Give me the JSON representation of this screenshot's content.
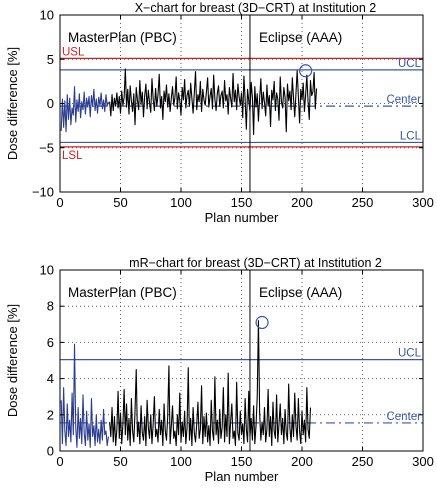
{
  "colors": {
    "pbc_series": "#2b3d8f",
    "aaa_series": "#000000",
    "limit_blue": "#3b55a8",
    "spec_red": "#d42020",
    "axis": "#000000"
  },
  "chart_data": [
    {
      "type": "line",
      "title": "X−chart for breast (3D−CRT) at Institution 2",
      "xlabel": "Plan number",
      "ylabel": "Dose difference [%]",
      "xlim": [
        0,
        300
      ],
      "ylim": [
        -10,
        10
      ],
      "grid": true,
      "x_ticks": [
        0,
        50,
        100,
        150,
        200,
        250,
        300
      ],
      "y_ticks": [
        -10,
        -5,
        0,
        5,
        10
      ],
      "x_tick_labels": [
        "0",
        "50",
        "100",
        "150",
        "200",
        "250",
        "300"
      ],
      "y_tick_labels": [
        "−10",
        "−5",
        "0",
        "5",
        "10"
      ],
      "regions": [
        {
          "label": "MasterPlan (PBC)",
          "x_start": 0,
          "x_end": 157
        },
        {
          "label": "Eclipse (AAA)",
          "x_start": 157,
          "x_end": 300
        }
      ],
      "divider_x": 157,
      "reference_lines": [
        {
          "label": "USL",
          "value": 5.1,
          "style": "solid",
          "color": "#d42020",
          "side": "left"
        },
        {
          "label": "UCL",
          "value": 3.8,
          "style": "solid",
          "color": "#3b55a8",
          "side": "right"
        },
        {
          "label": "Center",
          "value": -0.3,
          "style": "dashdot",
          "color": "#3b55a8",
          "side": "right"
        },
        {
          "label": "LCL",
          "value": -4.4,
          "style": "solid",
          "color": "#3b55a8",
          "side": "right"
        },
        {
          "label": "LSL",
          "value": -4.9,
          "style": "solid",
          "color": "#d42020",
          "side": "left"
        }
      ],
      "outliers": [
        {
          "x": 203,
          "y": 3.7
        }
      ],
      "series": [
        {
          "method": "PBC",
          "x_start": 1,
          "values": [
            -3.1,
            0.5,
            -2.7,
            0.3,
            -3.2,
            1.0,
            -1.8,
            0.6,
            -2.4,
            -0.5,
            -1.3,
            1.9,
            -2.1,
            0.4,
            -0.9,
            1.1,
            -1.6,
            0.2,
            -0.7,
            1.3,
            -1.2,
            0.6,
            -0.4,
            0.8,
            -1.5,
            0.9,
            -0.3,
            1.6,
            -0.8,
            0.5,
            -1.1,
            0.7,
            -0.2,
            1.2,
            -0.6,
            0.4,
            -0.9,
            1.0,
            -0.3,
            0.2
          ]
        },
        {
          "method": "AAA",
          "x_start": 41,
          "values": [
            0.2,
            -1.4,
            1.0,
            -0.8,
            0.6,
            -0.3,
            1.2,
            -0.5,
            0.8,
            -1.1,
            1.4,
            -0.2,
            0.7,
            3.9,
            -0.4,
            1.6,
            -1.2,
            2.0,
            0.3,
            -0.9,
            1.1,
            -2.4,
            1.8,
            0.4,
            -0.7,
            2.6,
            -0.1,
            1.3,
            -1.5,
            0.9,
            2.2,
            -0.6,
            1.5,
            0.1,
            -1.0,
            2.8,
            0.5,
            -0.8,
            1.7,
            -0.3,
            1.0,
            3.3,
            -0.5,
            0.8,
            -1.8,
            1.4,
            0.2,
            2.1,
            -0.4,
            1.1,
            -0.9,
            0.6,
            1.9,
            -0.2,
            0.7,
            3.0,
            -0.6,
            1.2,
            0.3,
            -1.3,
            1.8,
            0.4,
            2.7,
            -0.5,
            0.9,
            1.5,
            -0.3,
            2.3,
            0.6,
            -1.1,
            1.2,
            3.6,
            -0.7,
            1.0,
            0.2,
            2.5,
            -0.9,
            1.6,
            0.4,
            -0.2,
            1.3,
            2.9,
            -0.4,
            0.8,
            1.7,
            -0.6,
            3.2,
            0.5,
            -0.8,
            1.1,
            2.0,
            -0.3,
            0.9,
            1.4,
            -0.5,
            2.6,
            0.3,
            1.0,
            -1.2,
            1.8,
            0.6,
            -0.4,
            3.4,
            0.2,
            1.5,
            -0.7,
            2.2,
            0.8,
            -0.2,
            1.2,
            -1.6,
            3.1,
            0.4,
            -2.9,
            1.6,
            0.3,
            -0.9,
            2.4,
            0.7,
            -3.5,
            1.9,
            -0.4,
            1.1,
            -2.0,
            0.6,
            2.8,
            -0.6,
            1.3,
            0.1,
            -1.4,
            2.1,
            -0.3,
            0.9,
            -2.6,
            1.5,
            0.4,
            2.5,
            -0.8,
            1.2,
            0.5,
            -1.9,
            3.0,
            0.2,
            -0.5,
            1.8,
            0.7,
            -3.2,
            2.2,
            0.3,
            1.4,
            -0.7,
            2.9,
            0.6,
            -1.5,
            1.1,
            3.7,
            0.8,
            -2.2,
            1.6,
            0.4,
            2.3,
            -0.9,
            1.0,
            3.2,
            0.2,
            -1.8,
            2.6,
            0.9,
            1.3,
            3.5,
            -0.6,
            1.7
          ]
        }
      ]
    },
    {
      "type": "line",
      "title": "mR−chart for breast (3D−CRT) at Institution 2",
      "xlabel": "Plan number",
      "ylabel": "Dose difference [%]",
      "xlim": [
        0,
        300
      ],
      "ylim": [
        0,
        10
      ],
      "grid": true,
      "x_ticks": [
        0,
        50,
        100,
        150,
        200,
        250,
        300
      ],
      "y_ticks": [
        0,
        2,
        4,
        6,
        8,
        10
      ],
      "x_tick_labels": [
        "0",
        "50",
        "100",
        "150",
        "200",
        "250",
        "300"
      ],
      "y_tick_labels": [
        "0",
        "2",
        "4",
        "6",
        "8",
        "10"
      ],
      "regions": [
        {
          "label": "MasterPlan (PBC)",
          "x_start": 0,
          "x_end": 157
        },
        {
          "label": "Eclipse (AAA)",
          "x_start": 157,
          "x_end": 300
        }
      ],
      "divider_x": 157,
      "reference_lines": [
        {
          "label": "UCL",
          "value": 5.05,
          "style": "solid",
          "color": "#3b55a8",
          "side": "right"
        },
        {
          "label": "Center",
          "value": 1.55,
          "style": "dashdot",
          "color": "#3b55a8",
          "side": "right"
        }
      ],
      "outliers": [
        {
          "x": 167,
          "y": 7.1
        }
      ],
      "series": [
        {
          "method": "PBC",
          "x_start": 1,
          "values": [
            2.8,
            0.4,
            3.5,
            1.1,
            0.3,
            2.6,
            0.8,
            1.7,
            0.5,
            3.2,
            0.9,
            5.9,
            1.3,
            0.2,
            2.4,
            0.7,
            1.8,
            0.4,
            3.1,
            1.0,
            0.3,
            2.2,
            0.6,
            1.5,
            0.2,
            2.9,
            0.8,
            1.4,
            0.3,
            2.0,
            0.5,
            1.2,
            0.4,
            1.7,
            0.6,
            2.3,
            0.9,
            1.1,
            0.3,
            0.8
          ]
        },
        {
          "method": "AAA",
          "x_start": 41,
          "values": [
            1.6,
            0.8,
            2.4,
            0.5,
            1.9,
            0.3,
            1.2,
            3.3,
            0.7,
            2.1,
            0.4,
            1.5,
            3.4,
            0.9,
            2.6,
            0.6,
            1.8,
            0.3,
            2.9,
            1.1,
            0.5,
            2.2,
            4.5,
            0.8,
            1.6,
            0.4,
            2.5,
            1.0,
            0.6,
            1.9,
            0.3,
            2.8,
            1.3,
            0.7,
            2.0,
            0.4,
            1.5,
            3.0,
            0.8,
            1.2,
            0.5,
            2.3,
            0.9,
            1.7,
            0.3,
            2.6,
            1.1,
            0.6,
            1.9,
            4.7,
            0.4,
            1.4,
            2.5,
            0.7,
            1.1,
            0.3,
            2.0,
            0.9,
            3.2,
            0.5,
            1.6,
            0.8,
            2.2,
            0.4,
            1.3,
            4.6,
            0.6,
            1.8,
            0.3,
            2.4,
            1.0,
            0.5,
            1.5,
            2.7,
            0.7,
            1.2,
            3.6,
            0.4,
            1.9,
            0.8,
            2.1,
            0.5,
            1.4,
            0.3,
            2.8,
            1.1,
            0.6,
            4.1,
            0.9,
            1.7,
            0.4,
            2.3,
            0.7,
            1.3,
            3.5,
            0.5,
            2.0,
            0.8,
            4.3,
            0.4,
            1.6,
            2.6,
            0.7,
            1.1,
            0.3,
            3.8,
            1.0,
            0.6,
            2.2,
            0.9,
            1.5,
            0.4,
            2.9,
            1.2,
            0.5,
            3.3,
            0.8,
            1.8,
            0.6,
            2.5,
            0.4,
            1.4,
            3.0,
            7.2,
            2.1,
            0.6,
            1.6,
            0.9,
            2.4,
            0.5,
            1.2,
            3.4,
            0.8,
            1.9,
            0.3,
            2.7,
            1.1,
            0.7,
            3.1,
            0.5,
            1.5,
            2.6,
            0.9,
            1.8,
            0.4,
            2.3,
            1.0,
            0.6,
            3.7,
            1.3,
            0.5,
            2.0,
            0.8,
            3.2,
            1.4,
            0.6,
            2.9,
            1.1,
            0.4,
            2.2,
            0.9,
            1.7,
            0.5,
            3.5,
            1.2,
            0.7,
            2.4
          ]
        }
      ]
    }
  ]
}
